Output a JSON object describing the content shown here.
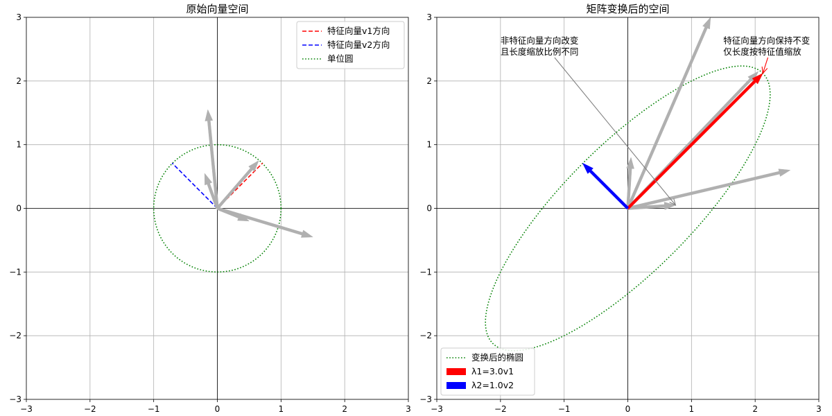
{
  "chart_data": [
    {
      "type": "line",
      "title": "原始向量空间",
      "xlim": [
        -3,
        3
      ],
      "ylim": [
        -3,
        3
      ],
      "xticks": [
        -3,
        -2,
        -1,
        0,
        1,
        2,
        3
      ],
      "yticks": [
        -3,
        -2,
        -1,
        0,
        1,
        2,
        3
      ],
      "tick_labels": [
        "−3",
        "−2",
        "−1",
        "0",
        "1",
        "2",
        "3"
      ],
      "grid": true,
      "legend": {
        "placement": "top-right",
        "entries": [
          {
            "label": "特征向量v1方向",
            "style": "dashed",
            "color": "#ff0000"
          },
          {
            "label": "特征向量v2方向",
            "style": "dashed",
            "color": "#0000ff"
          },
          {
            "label": "单位圆",
            "style": "dotted",
            "color": "#008000"
          }
        ]
      },
      "eigen_lines": [
        {
          "from": [
            0,
            0
          ],
          "to": [
            0.71,
            0.71
          ],
          "color": "#ff0000"
        },
        {
          "from": [
            0,
            0
          ],
          "to": [
            -0.71,
            0.71
          ],
          "color": "#0000ff"
        }
      ],
      "ellipse": {
        "kind": "unit-circle",
        "cx": 0,
        "cy": 0,
        "rx": 1,
        "ry": 1,
        "angle_deg": 0,
        "color": "#008000"
      },
      "vectors": [
        {
          "x": 1.5,
          "y": -0.45,
          "color": "#b0b0b0"
        },
        {
          "x": -0.15,
          "y": 1.55,
          "color": "#b0b0b0"
        },
        {
          "x": 0.65,
          "y": 0.75,
          "color": "#b0b0b0"
        },
        {
          "x": -0.2,
          "y": 0.55,
          "color": "#b0b0b0"
        },
        {
          "x": 0.5,
          "y": -0.2,
          "color": "#b0b0b0"
        }
      ]
    },
    {
      "type": "line",
      "title": "矩阵变换后的空间",
      "xlim": [
        -3,
        3
      ],
      "ylim": [
        -3,
        3
      ],
      "xticks": [
        -3,
        -2,
        -1,
        0,
        1,
        2,
        3
      ],
      "yticks": [
        -3,
        -2,
        -1,
        0,
        1,
        2,
        3
      ],
      "tick_labels": [
        "−3",
        "−2",
        "−1",
        "0",
        "1",
        "2",
        "3"
      ],
      "grid": true,
      "legend": {
        "placement": "bottom-left",
        "entries": [
          {
            "label": "变换后的椭圆",
            "style": "dotted",
            "color": "#008000"
          },
          {
            "label": "λ1=3.0v1",
            "style": "patch",
            "color": "#ff0000"
          },
          {
            "label": "λ2=1.0v2",
            "style": "patch",
            "color": "#0000ff"
          }
        ]
      },
      "ellipse": {
        "kind": "transformed",
        "cx": 0,
        "cy": 0,
        "rx": 3,
        "ry": 1,
        "angle_deg": 45,
        "color": "#008000"
      },
      "vectors": [
        {
          "x": 2.55,
          "y": 0.6,
          "color": "#b0b0b0"
        },
        {
          "x": 1.3,
          "y": 3.0,
          "color": "#b0b0b0"
        },
        {
          "x": 2.05,
          "y": 2.15,
          "color": "#b0b0b0"
        },
        {
          "x": 0.05,
          "y": 0.8,
          "color": "#b0b0b0"
        },
        {
          "x": 0.75,
          "y": 0.05,
          "color": "#b0b0b0"
        },
        {
          "x": 2.12,
          "y": 2.12,
          "color": "#ff0000"
        },
        {
          "x": -0.71,
          "y": 0.71,
          "color": "#0000ff"
        }
      ],
      "annotations": [
        {
          "lines": [
            "非特征向量方向改变",
            "且长度缩放比例不同"
          ],
          "text_at": [
            -2.0,
            2.63
          ],
          "arrow_to": [
            0.75,
            0.05
          ],
          "color": "#808080"
        },
        {
          "lines": [
            "特征向量方向保持不变",
            "仅长度按特征值缩放"
          ],
          "text_at": [
            1.5,
            2.63
          ],
          "arrow_to": [
            2.12,
            2.12
          ],
          "color": "#ff0000"
        }
      ]
    }
  ]
}
